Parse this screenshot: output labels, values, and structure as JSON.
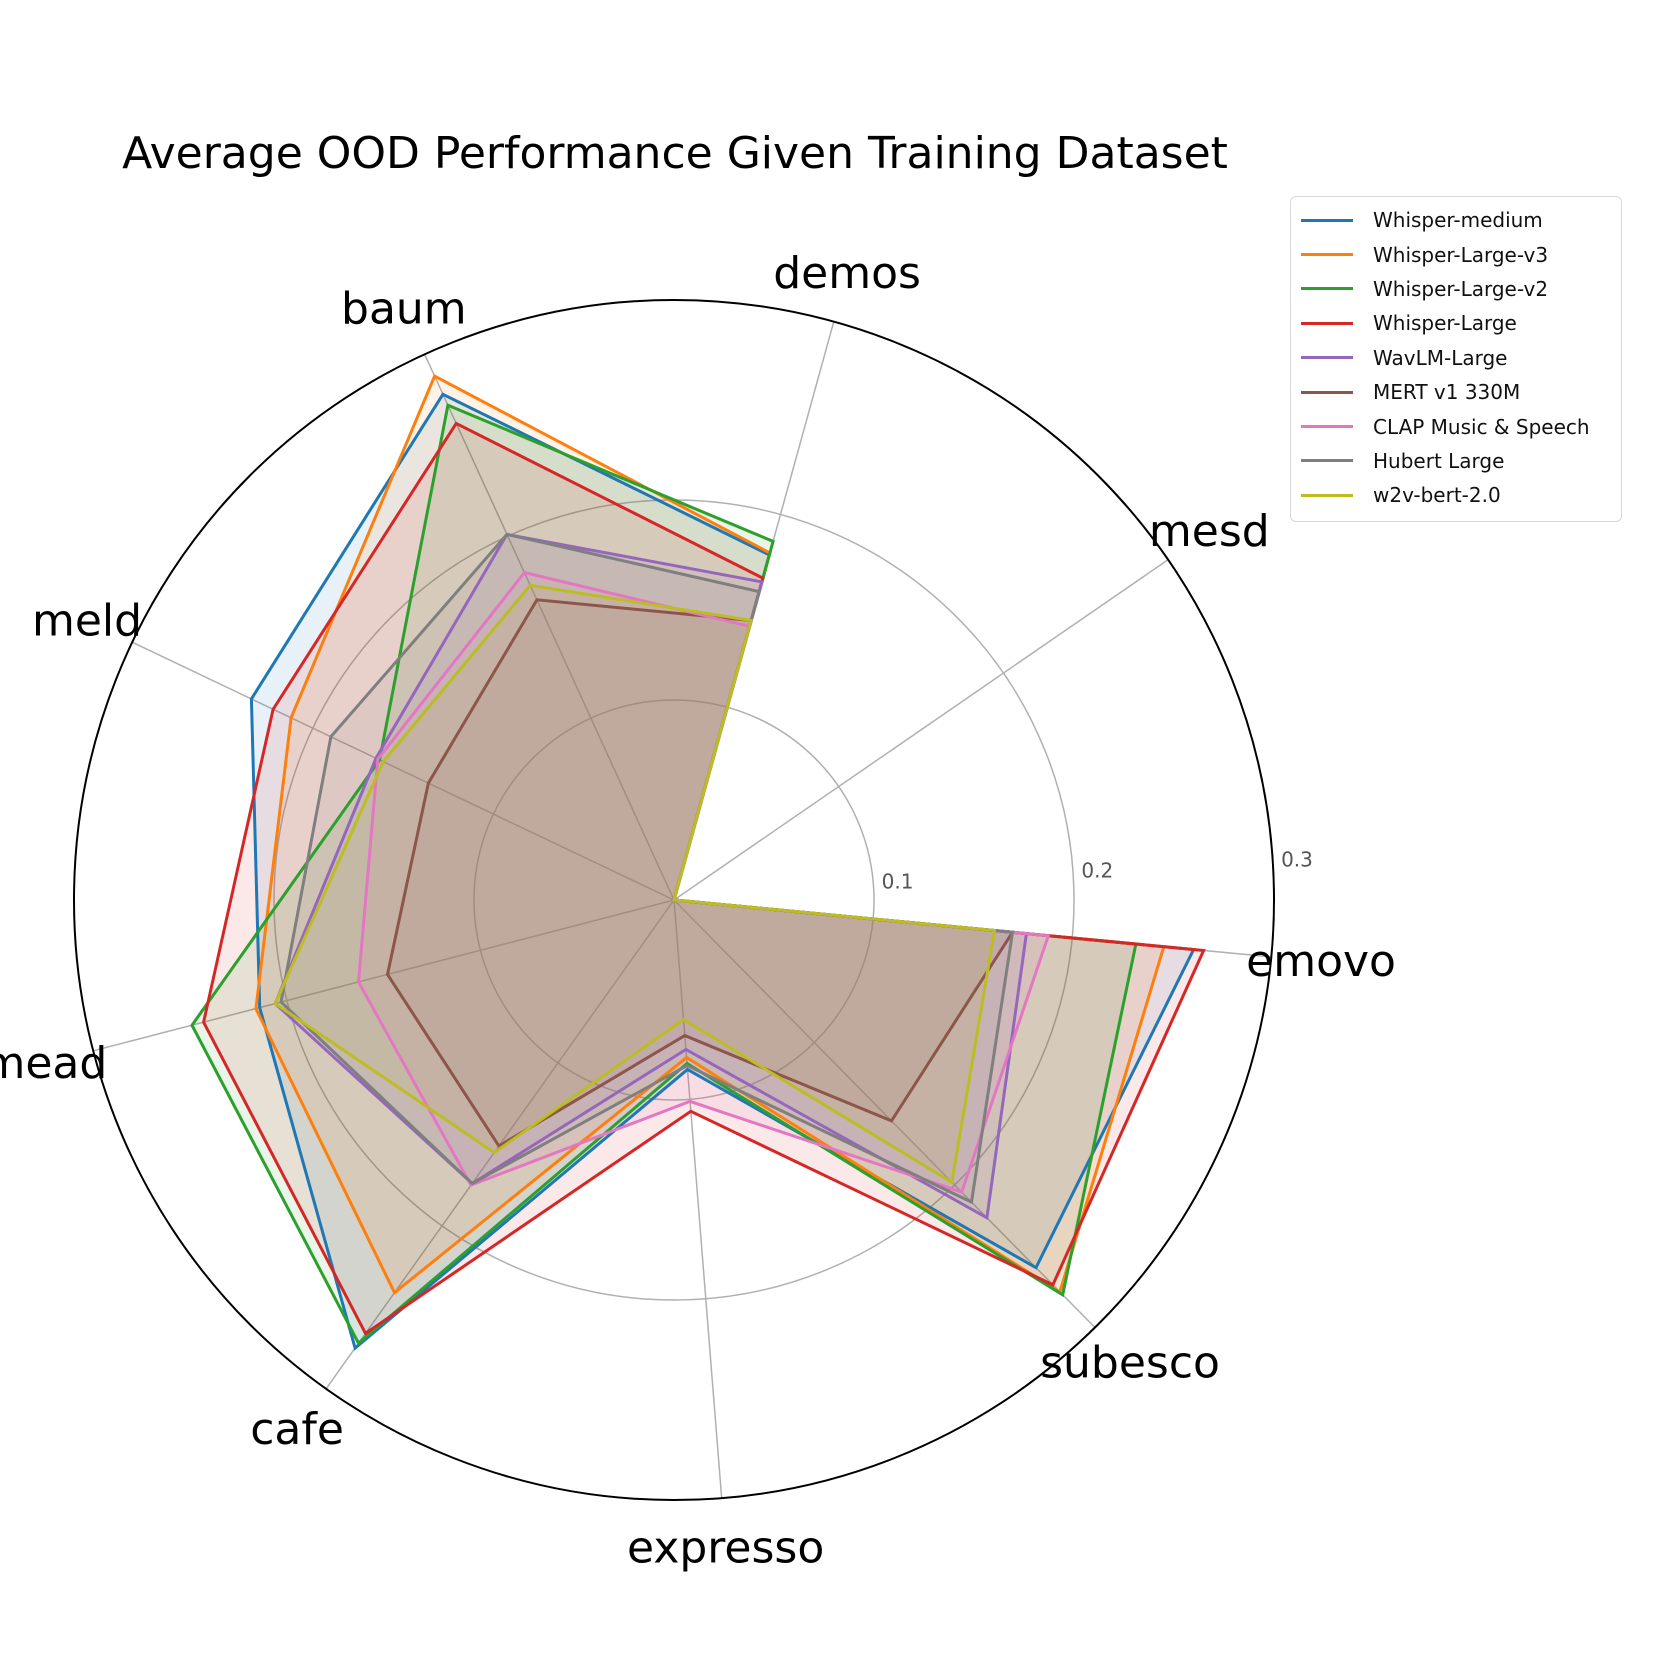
{
  "chart_data": {
    "type": "radar",
    "title": "Average OOD Performance Given Training Dataset",
    "axes": [
      "emovo",
      "mesd",
      "demos",
      "baum",
      "meld",
      "mead",
      "cafe",
      "expresso",
      "subesco"
    ],
    "radial_ticks": [
      0.1,
      0.2,
      0.3
    ],
    "radial_tick_labels": [
      "0.1",
      "0.2",
      "0.3"
    ],
    "rmax": 0.3,
    "grid": true,
    "legend_position": "upper-right",
    "series": [
      {
        "name": "Whisper-medium",
        "color": "#1f77b4",
        "values": [
          0.261,
          0.0,
          0.179,
          0.278,
          0.234,
          0.214,
          0.275,
          0.085,
          0.258
        ]
      },
      {
        "name": "Whisper-Large-v3",
        "color": "#ff7f0e",
        "values": [
          0.246,
          0.0,
          0.18,
          0.288,
          0.212,
          0.216,
          0.241,
          0.079,
          0.275
        ]
      },
      {
        "name": "Whisper-Large-v2",
        "color": "#2ca02c",
        "values": [
          0.232,
          0.0,
          0.186,
          0.272,
          0.163,
          0.249,
          0.272,
          0.082,
          0.277
        ]
      },
      {
        "name": "Whisper-Large",
        "color": "#d62728",
        "values": [
          0.266,
          0.0,
          0.167,
          0.262,
          0.222,
          0.243,
          0.266,
          0.106,
          0.27
        ]
      },
      {
        "name": "WavLM-Large",
        "color": "#9467bd",
        "values": [
          0.177,
          0.0,
          0.165,
          0.201,
          0.165,
          0.206,
          0.174,
          0.075,
          0.223
        ]
      },
      {
        "name": "MERT v1 330M",
        "color": "#8c564b",
        "values": [
          0.17,
          0.0,
          0.145,
          0.165,
          0.136,
          0.148,
          0.151,
          0.068,
          0.155
        ]
      },
      {
        "name": "CLAP Music & Speech",
        "color": "#e377c2",
        "values": [
          0.188,
          0.0,
          0.142,
          0.18,
          0.164,
          0.163,
          0.175,
          0.101,
          0.205
        ]
      },
      {
        "name": "Hubert Large",
        "color": "#7f7f7f",
        "values": [
          0.17,
          0.0,
          0.16,
          0.201,
          0.19,
          0.203,
          0.174,
          0.083,
          0.212
        ]
      },
      {
        "name": "w2v-bert-2.0",
        "color": "#bcbd22",
        "values": [
          0.161,
          0.0,
          0.145,
          0.173,
          0.161,
          0.206,
          0.155,
          0.06,
          0.198
        ]
      }
    ]
  }
}
